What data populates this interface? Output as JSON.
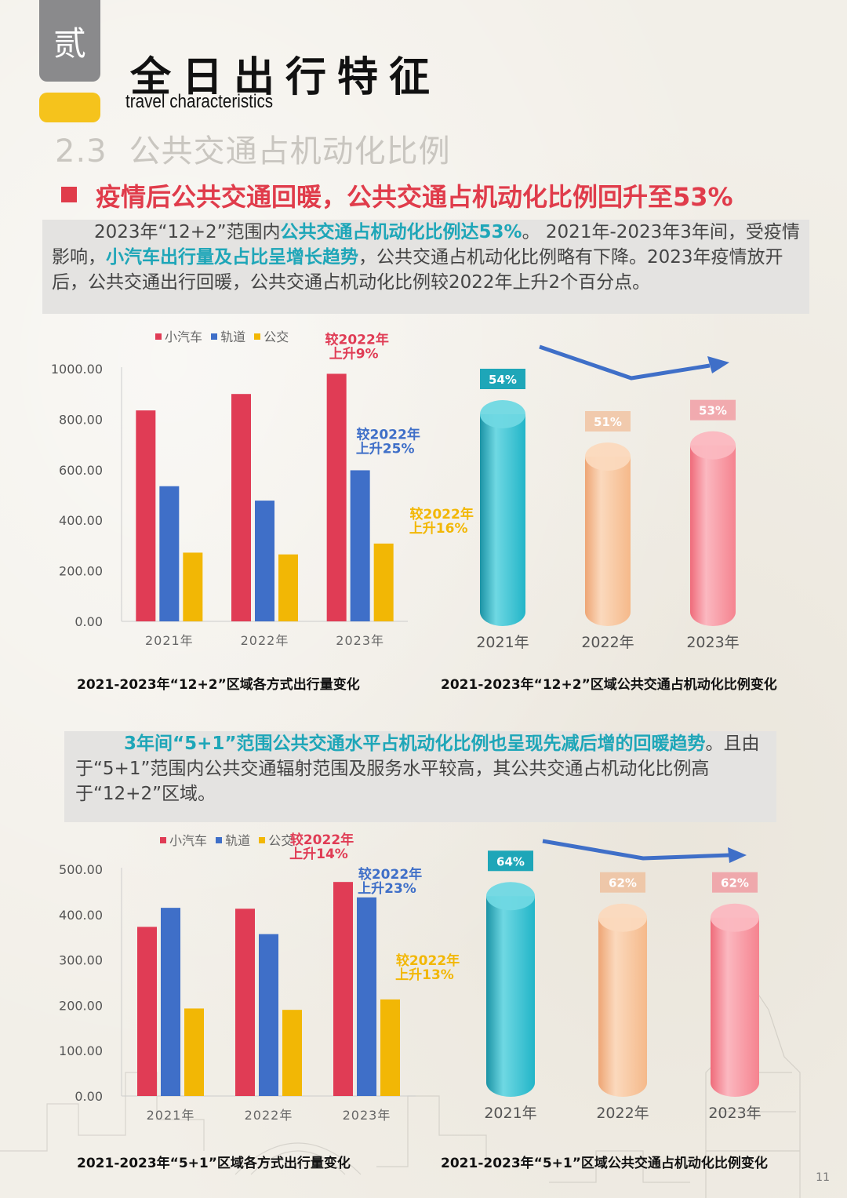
{
  "header": {
    "chapter_tab": "贰",
    "title_cn": "全日出行特征",
    "title_en": "travel characteristics",
    "section_number": "2.3",
    "section_title": "公共交通占机动化比例",
    "headline": "疫情后公共交通回暖，公共交通占机动化比例回升至53%"
  },
  "intro": {
    "p1_a": "2023年“12+2”范围内",
    "p1_hl1": "公共交通占机动化比例达53%",
    "p1_b": "。 2021年-2023年3年间，受疫情影响，",
    "p1_hl2": "小汽车出行量及占比呈增长趋势",
    "p1_c": "，公共交通占机动化比例略有下降。2023年疫情放开后，公共交通出行回暖，公共交通占机动化比例较2022年上升2个百分点。"
  },
  "intro2": {
    "hl": "3年间“5+1”范围公共交通水平占机动化比例也呈现先减后增的回暖趋势",
    "a": "。且由于“5+1”范围内公共交通辐射范围及服务水平较高，其公共交通占机动化比例高于“12+2”区域。"
  },
  "legend": {
    "car": "小汽车",
    "rail": "轨道",
    "bus": "公交"
  },
  "colors": {
    "car": "#e03c55",
    "rail": "#3f6fc8",
    "bus": "#f2b705",
    "anno_red": "#e03c55",
    "anno_blue": "#3f6fc8",
    "anno_yellow": "#f2b705"
  },
  "chart_data": [
    {
      "type": "bar",
      "title": "2021-2023年“12+2”区域各方式出行量变化",
      "categories": [
        "2021年",
        "2022年",
        "2023年"
      ],
      "series": [
        {
          "name": "小汽车",
          "values": [
            835,
            900,
            980
          ]
        },
        {
          "name": "轨道",
          "values": [
            535,
            478,
            598
          ]
        },
        {
          "name": "公交",
          "values": [
            272,
            265,
            308
          ]
        }
      ],
      "yticks": [
        "1000.00",
        "800.00",
        "600.00",
        "400.00",
        "200.00",
        "0.00"
      ],
      "ylim": [
        0,
        1000
      ],
      "annotations": [
        {
          "series": 0,
          "line1": "较2022年",
          "line2": "上升9%"
        },
        {
          "series": 1,
          "line1": "较2022年",
          "line2": "上升25%"
        },
        {
          "series": 2,
          "line1": "较2022年",
          "line2": "上升16%"
        }
      ]
    },
    {
      "type": "bar",
      "title": "2021-2023年“12+2”区域公共交通占机动化比例变化",
      "categories": [
        "2021年",
        "2022年",
        "2023年"
      ],
      "values": [
        54,
        51,
        53
      ],
      "labels": [
        "54%",
        "51%",
        "53%"
      ],
      "ylim": [
        0,
        60
      ]
    },
    {
      "type": "bar",
      "title": "2021-2023年“5+1”区域各方式出行量变化",
      "categories": [
        "2021年",
        "2022年",
        "2023年"
      ],
      "series": [
        {
          "name": "小汽车",
          "values": [
            373,
            413,
            472
          ]
        },
        {
          "name": "轨道",
          "values": [
            415,
            357,
            438
          ]
        },
        {
          "name": "公交",
          "values": [
            193,
            190,
            213
          ]
        }
      ],
      "yticks": [
        "500.00",
        "400.00",
        "300.00",
        "200.00",
        "100.00",
        "0.00"
      ],
      "ylim": [
        0,
        500
      ],
      "annotations": [
        {
          "series": 0,
          "line1": "较2022年",
          "line2": "上升14%"
        },
        {
          "series": 1,
          "line1": "较2022年",
          "line2": "上升23%"
        },
        {
          "series": 2,
          "line1": "较2022年",
          "line2": "上升13%"
        }
      ]
    },
    {
      "type": "bar",
      "title": "2021-2023年“5+1”区域公共交通占机动化比例变化",
      "categories": [
        "2021年",
        "2022年",
        "2023年"
      ],
      "values": [
        64,
        62,
        62
      ],
      "labels": [
        "64%",
        "62%",
        "62%"
      ],
      "ylim": [
        0,
        70
      ]
    }
  ],
  "page_number": "11"
}
